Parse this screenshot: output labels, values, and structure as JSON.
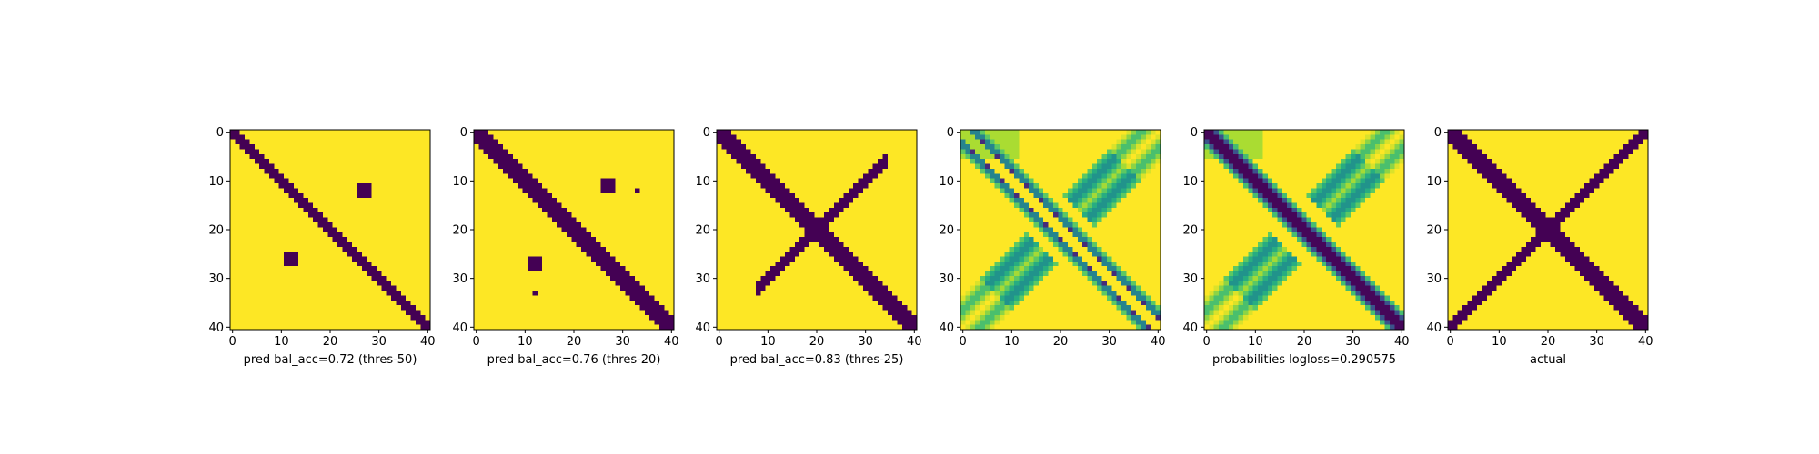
{
  "colors": {
    "low": "#440154",
    "high": "#fde725",
    "colormap": "viridis",
    "axis": "#000000"
  },
  "chart_data": [
    {
      "type": "heatmap",
      "xlabel": "pred bal_acc=0.72 (thres-50)",
      "x_ticks": [
        0,
        10,
        20,
        30,
        40
      ],
      "y_ticks": [
        0,
        10,
        20,
        30,
        40
      ],
      "xlim": [
        0,
        40
      ],
      "ylim": [
        40,
        0
      ],
      "grid": false,
      "value_range": [
        0,
        1
      ],
      "binary": true,
      "diagonal_band_halfwidth": 1.5,
      "anti_diagonal_band_halfwidth": 0,
      "blobs": [
        [
          27,
          12,
          1
        ],
        [
          12,
          26,
          1
        ]
      ]
    },
    {
      "type": "heatmap",
      "xlabel": "pred bal_acc=0.76 (thres-20)",
      "x_ticks": [
        0,
        10,
        20,
        30,
        40
      ],
      "y_ticks": [
        0,
        10,
        20,
        30,
        40
      ],
      "xlim": [
        0,
        40
      ],
      "ylim": [
        40,
        0
      ],
      "grid": false,
      "value_range": [
        0,
        1
      ],
      "binary": true,
      "diagonal_band_halfwidth": 2,
      "anti_diagonal_band_halfwidth": 0,
      "blobs": [
        [
          27,
          11,
          1.5
        ],
        [
          33,
          12,
          0.5
        ],
        [
          12,
          27,
          1.5
        ],
        [
          12,
          33,
          0.5
        ]
      ]
    },
    {
      "type": "heatmap",
      "xlabel": "pred bal_acc=0.83 (thres-25)",
      "x_ticks": [
        0,
        10,
        20,
        30,
        40
      ],
      "y_ticks": [
        0,
        10,
        20,
        30,
        40
      ],
      "xlim": [
        0,
        40
      ],
      "ylim": [
        40,
        0
      ],
      "grid": false,
      "value_range": [
        0,
        1
      ],
      "binary": true,
      "diagonal_band_halfwidth": 2.5,
      "anti_diagonal_band_halfwidth": 1.2,
      "anti_diagonal_range": [
        8,
        34
      ],
      "blobs": []
    },
    {
      "type": "heatmap",
      "xlabel": "",
      "x_ticks": [
        0,
        10,
        20,
        30,
        40
      ],
      "y_ticks": [
        0,
        10,
        20,
        30,
        40
      ],
      "xlim": [
        0,
        40
      ],
      "ylim": [
        40,
        0
      ],
      "grid": false,
      "value_range": [
        0,
        1
      ],
      "binary": false,
      "continuous_style": "offset-diagonals"
    },
    {
      "type": "heatmap",
      "xlabel": "probabilities logloss=0.290575",
      "x_ticks": [
        0,
        10,
        20,
        30,
        40
      ],
      "y_ticks": [
        0,
        10,
        20,
        30,
        40
      ],
      "xlim": [
        0,
        40
      ],
      "ylim": [
        40,
        0
      ],
      "grid": false,
      "value_range": [
        0,
        1
      ],
      "binary": false,
      "continuous_style": "main-diagonal"
    },
    {
      "type": "heatmap",
      "xlabel": "actual",
      "x_ticks": [
        0,
        10,
        20,
        30,
        40
      ],
      "y_ticks": [
        0,
        10,
        20,
        30,
        40
      ],
      "xlim": [
        0,
        40
      ],
      "ylim": [
        40,
        0
      ],
      "grid": false,
      "value_range": [
        0,
        1
      ],
      "binary": true,
      "diagonal_band_halfwidth": 2.5,
      "anti_diagonal_band_halfwidth": 1.8,
      "anti_diagonal_range": [
        0,
        40
      ],
      "blobs": [
        [
          39,
          2,
          0.5
        ],
        [
          2,
          39,
          0.5
        ]
      ]
    }
  ]
}
